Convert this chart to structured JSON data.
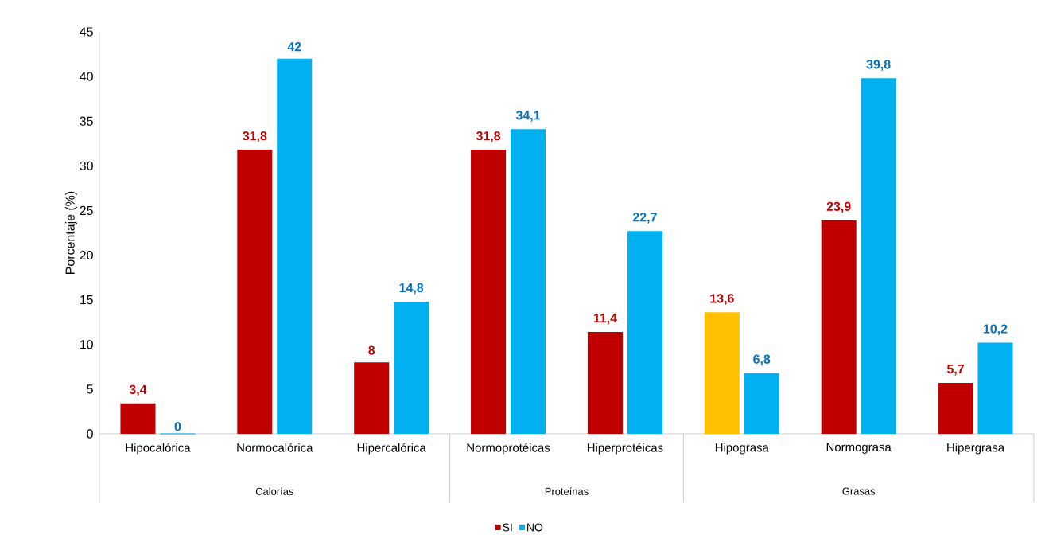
{
  "chart_data": {
    "type": "bar",
    "ylabel": "Porcentaje (%)",
    "categories": [
      "Hipocalórica",
      "Normocalórica",
      "Hipercalórica",
      "Normoprotéicas",
      "Hiperprotéicas",
      "Hipograsa",
      "Normograsa",
      "Hipergrasa"
    ],
    "series": [
      {
        "name": "SI",
        "color": "#c00000",
        "colors": [
          "#c00000",
          "#c00000",
          "#c00000",
          "#c00000",
          "#c00000",
          "#ffc000",
          "#c00000",
          "#c00000"
        ],
        "values": [
          3.4,
          31.8,
          8,
          31.8,
          11.4,
          13.6,
          23.9,
          5.7
        ],
        "value_labels": [
          "3,4",
          "31,8",
          "8",
          "31,8",
          "11,4",
          "13,6",
          "23,9",
          "5,7"
        ]
      },
      {
        "name": "NO",
        "color": "#00b0f0",
        "values": [
          0,
          42,
          14.8,
          34.1,
          22.7,
          6.8,
          39.8,
          10.2
        ],
        "value_labels": [
          "0",
          "42",
          "14,8",
          "34,1",
          "22,7",
          "6,8",
          "39,8",
          "10,2"
        ]
      }
    ],
    "annotations": [
      "Calorías",
      "Proteínas",
      "Grasas"
    ],
    "ylim": [
      0,
      45
    ],
    "yticks": [
      0,
      5,
      10,
      15,
      20,
      25,
      30,
      35,
      40,
      45
    ],
    "grid": false,
    "legend": "bottom"
  }
}
